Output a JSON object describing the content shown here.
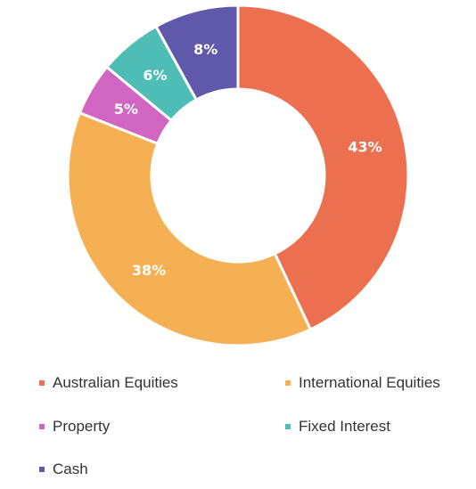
{
  "chart_data": {
    "type": "pie",
    "donut": true,
    "categories": [
      "Australian Equities",
      "International Equities",
      "Property",
      "Fixed Interest",
      "Cash"
    ],
    "values": [
      43,
      38,
      5,
      6,
      8
    ],
    "labels": [
      "43%",
      "38%",
      "5%",
      "6%",
      "8%"
    ],
    "colors": [
      "#ec7050",
      "#f4b052",
      "#d065c2",
      "#4dbdb5",
      "#6059ab"
    ],
    "legend": "bottom",
    "title": ""
  },
  "legend": {
    "items": [
      {
        "label": "Australian Equities",
        "color": "#ec7050"
      },
      {
        "label": "International Equities",
        "color": "#f4b052"
      },
      {
        "label": "Property",
        "color": "#d065c2"
      },
      {
        "label": "Fixed Interest",
        "color": "#4dbdb5"
      },
      {
        "label": "Cash",
        "color": "#6059ab"
      }
    ]
  }
}
